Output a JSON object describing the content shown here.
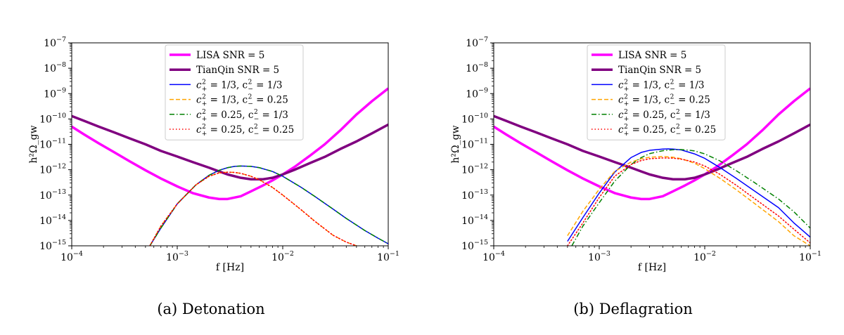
{
  "chart_data": [
    {
      "type": "line",
      "panel_caption": "(a) Detonation",
      "xlabel": "f [Hz]",
      "ylabel": "h²Ω_gw",
      "xscale": "log",
      "yscale": "log",
      "xlim": [
        0.0001,
        0.1
      ],
      "ylim": [
        1e-15,
        1e-07
      ],
      "xticks": [
        {
          "base": "10",
          "exp": "−4",
          "value": 0.0001
        },
        {
          "base": "10",
          "exp": "−3",
          "value": 0.001
        },
        {
          "base": "10",
          "exp": "−2",
          "value": 0.01
        },
        {
          "base": "10",
          "exp": "−1",
          "value": 0.1
        }
      ],
      "yticks": [
        {
          "base": "10",
          "exp": "−15",
          "value": 1e-15
        },
        {
          "base": "10",
          "exp": "−14",
          "value": 1e-14
        },
        {
          "base": "10",
          "exp": "−13",
          "value": 1e-13
        },
        {
          "base": "10",
          "exp": "−12",
          "value": 1e-12
        },
        {
          "base": "10",
          "exp": "−11",
          "value": 1e-11
        },
        {
          "base": "10",
          "exp": "−10",
          "value": 1e-10
        },
        {
          "base": "10",
          "exp": "−9",
          "value": 1e-09
        },
        {
          "base": "10",
          "exp": "−8",
          "value": 1e-08
        },
        {
          "base": "10",
          "exp": "−7",
          "value": 1e-07
        }
      ],
      "legend_location": "top-right",
      "series": [
        {
          "name": "LISA SNR = 5",
          "color": "#ff00ff",
          "style": "solid",
          "width": 3.5,
          "x": [
            0.0001,
            0.00013,
            0.00018,
            0.00025,
            0.00035,
            0.0005,
            0.0007,
            0.001,
            0.0014,
            0.002,
            0.0025,
            0.003,
            0.004,
            0.005,
            0.0065,
            0.008,
            0.01,
            0.013,
            0.018,
            0.025,
            0.035,
            0.05,
            0.07,
            0.1
          ],
          "y": [
            5e-11,
            2.5e-11,
            1.1e-11,
            5e-12,
            2.2e-12,
            9.5e-13,
            4.5e-13,
            2.2e-13,
            1.2e-13,
            8e-14,
            7e-14,
            7e-14,
            9e-14,
            1.4e-13,
            2.4e-13,
            3.8e-13,
            6.5e-13,
            1.3e-12,
            3.5e-12,
            1e-11,
            3.5e-11,
            1.5e-10,
            5e-10,
            1.6e-09
          ]
        },
        {
          "name": "TianQin SNR = 5",
          "color": "#800080",
          "style": "solid",
          "width": 3.5,
          "x": [
            0.0001,
            0.00013,
            0.00018,
            0.00025,
            0.00035,
            0.0005,
            0.0007,
            0.001,
            0.0014,
            0.002,
            0.0025,
            0.003,
            0.004,
            0.005,
            0.0065,
            0.008,
            0.01,
            0.013,
            0.018,
            0.025,
            0.035,
            0.05,
            0.07,
            0.1
          ],
          "y": [
            1.3e-10,
            8.5e-11,
            5e-11,
            3e-11,
            1.75e-11,
            1e-11,
            5.5e-12,
            3.3e-12,
            2e-12,
            1.2e-12,
            8.5e-13,
            6.5e-13,
            4.8e-13,
            4.2e-13,
            4.2e-13,
            4.8e-13,
            6.5e-13,
            1e-12,
            1.8e-12,
            3.2e-12,
            6.5e-12,
            1.3e-11,
            2.7e-11,
            6e-11
          ]
        },
        {
          "name": "c+² = 1/3, c−² = 1/3",
          "legend_parts": [
            "c",
            "+",
            "2",
            " = 1/3, c",
            "−",
            "2",
            " = 1/3"
          ],
          "color": "#0000ff",
          "style": "solid",
          "width": 1.5,
          "x": [
            0.00055,
            0.0007,
            0.001,
            0.0015,
            0.002,
            0.0025,
            0.003,
            0.0035,
            0.004,
            0.005,
            0.006,
            0.008,
            0.01,
            0.015,
            0.02,
            0.03,
            0.04,
            0.06,
            0.08,
            0.1
          ],
          "y": [
            1e-15,
            5e-15,
            4.5e-14,
            2.5e-13,
            6e-13,
            9.5e-13,
            1.2e-12,
            1.35e-12,
            1.4e-12,
            1.35e-12,
            1.2e-12,
            8.5e-13,
            5.5e-13,
            2e-13,
            9e-14,
            2.8e-14,
            1.2e-14,
            4e-15,
            2e-15,
            1.2e-15
          ]
        },
        {
          "name": "c+² = 1/3, c−² = 0.25",
          "legend_parts": [
            "c",
            "+",
            "2",
            " = 1/3, c",
            "−",
            "2",
            " = 0.25"
          ],
          "color": "#ffa500",
          "style": "dashed",
          "width": 1.5,
          "x": [
            0.00055,
            0.0007,
            0.001,
            0.0015,
            0.002,
            0.0025,
            0.003,
            0.0035,
            0.004,
            0.005,
            0.006,
            0.008,
            0.01,
            0.015,
            0.02,
            0.03,
            0.04,
            0.05
          ],
          "y": [
            1e-15,
            6e-15,
            4.5e-14,
            2.5e-13,
            5.5e-13,
            7.5e-13,
            8e-13,
            7.8e-13,
            7.2e-13,
            5.5e-13,
            4e-13,
            2e-13,
            1e-13,
            2.6e-14,
            9.5e-15,
            2.6e-15,
            1.4e-15,
            1e-15
          ]
        },
        {
          "name": "c+² = 0.25, c−² = 1/3",
          "legend_parts": [
            "c",
            "+",
            "2",
            " = 0.25, c",
            "−",
            "2",
            " = 1/3"
          ],
          "color": "#008000",
          "style": "dashdot",
          "width": 1.5,
          "x": [
            0.00055,
            0.0007,
            0.001,
            0.0015,
            0.002,
            0.0025,
            0.003,
            0.0035,
            0.004,
            0.005,
            0.006,
            0.008,
            0.01,
            0.015,
            0.02,
            0.03,
            0.04,
            0.06,
            0.08,
            0.1
          ],
          "y": [
            1e-15,
            5e-15,
            4.5e-14,
            2.5e-13,
            6e-13,
            9.5e-13,
            1.2e-12,
            1.35e-12,
            1.4e-12,
            1.35e-12,
            1.2e-12,
            8.5e-13,
            5.5e-13,
            2e-13,
            9e-14,
            2.8e-14,
            1.2e-14,
            4e-15,
            2e-15,
            1.2e-15
          ]
        },
        {
          "name": "c+² = 0.25, c−² = 0.25",
          "legend_parts": [
            "c",
            "+",
            "2",
            " = 0.25, c",
            "−",
            "2",
            " = 0.25"
          ],
          "color": "#ff0000",
          "style": "dotted",
          "width": 1.5,
          "x": [
            0.00055,
            0.0007,
            0.001,
            0.0015,
            0.002,
            0.0025,
            0.003,
            0.0035,
            0.004,
            0.005,
            0.006,
            0.008,
            0.01,
            0.015,
            0.02,
            0.03,
            0.04,
            0.05
          ],
          "y": [
            1e-15,
            6e-15,
            4.5e-14,
            2.5e-13,
            5.5e-13,
            7.5e-13,
            8e-13,
            7.8e-13,
            7.2e-13,
            5.5e-13,
            4e-13,
            2e-13,
            1e-13,
            2.6e-14,
            9.5e-15,
            2.6e-15,
            1.4e-15,
            1e-15
          ]
        }
      ]
    },
    {
      "type": "line",
      "panel_caption": "(b) Deflagration",
      "xlabel": "f [Hz]",
      "ylabel": "h²Ω_gw",
      "xscale": "log",
      "yscale": "log",
      "xlim": [
        0.0001,
        0.1
      ],
      "ylim": [
        1e-15,
        1e-07
      ],
      "xticks": [
        {
          "base": "10",
          "exp": "−4",
          "value": 0.0001
        },
        {
          "base": "10",
          "exp": "−3",
          "value": 0.001
        },
        {
          "base": "10",
          "exp": "−2",
          "value": 0.01
        },
        {
          "base": "10",
          "exp": "−1",
          "value": 0.1
        }
      ],
      "yticks": [
        {
          "base": "10",
          "exp": "−15",
          "value": 1e-15
        },
        {
          "base": "10",
          "exp": "−14",
          "value": 1e-14
        },
        {
          "base": "10",
          "exp": "−13",
          "value": 1e-13
        },
        {
          "base": "10",
          "exp": "−12",
          "value": 1e-12
        },
        {
          "base": "10",
          "exp": "−11",
          "value": 1e-11
        },
        {
          "base": "10",
          "exp": "−10",
          "value": 1e-10
        },
        {
          "base": "10",
          "exp": "−9",
          "value": 1e-09
        },
        {
          "base": "10",
          "exp": "−8",
          "value": 1e-08
        },
        {
          "base": "10",
          "exp": "−7",
          "value": 1e-07
        }
      ],
      "legend_location": "top-right",
      "series": [
        {
          "name": "LISA SNR = 5",
          "color": "#ff00ff",
          "style": "solid",
          "width": 3.5,
          "x": [
            0.0001,
            0.00013,
            0.00018,
            0.00025,
            0.00035,
            0.0005,
            0.0007,
            0.001,
            0.0014,
            0.002,
            0.0025,
            0.003,
            0.004,
            0.005,
            0.0065,
            0.008,
            0.01,
            0.013,
            0.018,
            0.025,
            0.035,
            0.05,
            0.07,
            0.1
          ],
          "y": [
            5e-11,
            2.5e-11,
            1.1e-11,
            5e-12,
            2.2e-12,
            9.5e-13,
            4.5e-13,
            2.2e-13,
            1.2e-13,
            8e-14,
            7e-14,
            7e-14,
            9e-14,
            1.4e-13,
            2.4e-13,
            3.8e-13,
            6.5e-13,
            1.3e-12,
            3.5e-12,
            1e-11,
            3.5e-11,
            1.5e-10,
            5e-10,
            1.6e-09
          ]
        },
        {
          "name": "TianQin SNR = 5",
          "color": "#800080",
          "style": "solid",
          "width": 3.5,
          "x": [
            0.0001,
            0.00013,
            0.00018,
            0.00025,
            0.00035,
            0.0005,
            0.0007,
            0.001,
            0.0014,
            0.002,
            0.0025,
            0.003,
            0.004,
            0.005,
            0.0065,
            0.008,
            0.01,
            0.013,
            0.018,
            0.025,
            0.035,
            0.05,
            0.07,
            0.1
          ],
          "y": [
            1.3e-10,
            8.5e-11,
            5e-11,
            3e-11,
            1.75e-11,
            1e-11,
            5.5e-12,
            3.3e-12,
            2e-12,
            1.2e-12,
            8.5e-13,
            6.5e-13,
            4.8e-13,
            4.2e-13,
            4.2e-13,
            4.8e-13,
            6.5e-13,
            1e-12,
            1.8e-12,
            3.2e-12,
            6.5e-12,
            1.3e-11,
            2.7e-11,
            6e-11
          ]
        },
        {
          "name": "c+² = 1/3, c−² = 1/3",
          "legend_parts": [
            "c",
            "+",
            "2",
            " = 1/3, c",
            "−",
            "2",
            " = 1/3"
          ],
          "color": "#0000ff",
          "style": "solid",
          "width": 1.5,
          "x": [
            0.0005,
            0.0007,
            0.001,
            0.0014,
            0.002,
            0.0025,
            0.003,
            0.004,
            0.0045,
            0.005,
            0.006,
            0.008,
            0.01,
            0.014,
            0.02,
            0.03,
            0.05,
            0.07,
            0.1
          ],
          "y": [
            1.5e-15,
            1.3e-14,
            1.2e-13,
            8e-13,
            3e-12,
            4.8e-12,
            5.8e-12,
            6.5e-12,
            6.6e-12,
            6.5e-12,
            6e-12,
            4.2e-12,
            2.8e-12,
            1.2e-12,
            4.5e-13,
            1.4e-13,
            3.2e-14,
            8e-15,
            2.2e-15
          ]
        },
        {
          "name": "c+² = 1/3, c−² = 0.25",
          "legend_parts": [
            "c",
            "+",
            "2",
            " = 1/3, c",
            "−",
            "2",
            " = 0.25"
          ],
          "color": "#ffa500",
          "style": "dashed",
          "width": 1.5,
          "x": [
            0.0005,
            0.0007,
            0.001,
            0.0014,
            0.002,
            0.0025,
            0.003,
            0.004,
            0.005,
            0.006,
            0.008,
            0.01,
            0.014,
            0.02,
            0.03,
            0.05,
            0.07,
            0.1
          ],
          "y": [
            2.5e-15,
            2.3e-14,
            1.7e-13,
            8.5e-13,
            2e-12,
            2.7e-12,
            3.1e-12,
            3.3e-12,
            3.1e-12,
            2.7e-12,
            1.8e-12,
            1.1e-12,
            4.5e-13,
            1.6e-13,
            4.5e-14,
            9e-15,
            2.5e-15,
            1e-15
          ]
        },
        {
          "name": "c+² = 0.25, c−² = 1/3",
          "legend_parts": [
            "c",
            "+",
            "2",
            " = 0.25, c",
            "−",
            "2",
            " = 1/3"
          ],
          "color": "#008000",
          "style": "dashdot",
          "width": 1.5,
          "x": [
            0.00055,
            0.0007,
            0.001,
            0.0014,
            0.002,
            0.0025,
            0.003,
            0.004,
            0.005,
            0.006,
            0.007,
            0.008,
            0.01,
            0.014,
            0.02,
            0.03,
            0.05,
            0.07,
            0.1
          ],
          "y": [
            1e-15,
            6e-15,
            5e-14,
            3.5e-13,
            1.6e-12,
            3e-12,
            4.3e-12,
            5.6e-12,
            6.1e-12,
            6.2e-12,
            5.9e-12,
            5.5e-12,
            4.2e-12,
            2.2e-12,
            9e-13,
            3e-13,
            7e-14,
            2.2e-14,
            5e-15
          ]
        },
        {
          "name": "c+² = 0.25, c−² = 0.25",
          "legend_parts": [
            "c",
            "+",
            "2",
            " = 0.25, c",
            "−",
            "2",
            " = 0.25"
          ],
          "color": "#ff0000",
          "style": "dotted",
          "width": 1.5,
          "x": [
            0.0005,
            0.0007,
            0.001,
            0.0014,
            0.002,
            0.0025,
            0.003,
            0.004,
            0.005,
            0.006,
            0.008,
            0.01,
            0.014,
            0.02,
            0.03,
            0.05,
            0.07,
            0.1
          ],
          "y": [
            1e-15,
            8e-15,
            8e-14,
            5.5e-13,
            1.6e-12,
            2.3e-12,
            2.7e-12,
            2.9e-12,
            2.85e-12,
            2.6e-12,
            2e-12,
            1.4e-12,
            6.5e-13,
            2.4e-13,
            7e-14,
            1.5e-14,
            4.5e-15,
            1.3e-15
          ]
        }
      ]
    }
  ]
}
